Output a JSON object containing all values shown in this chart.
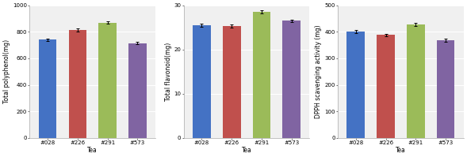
{
  "categories": [
    "#028",
    "#226",
    "#291",
    "#573"
  ],
  "chart1": {
    "ylabel": "Total polyphenol(mg)",
    "xlabel": "Tea",
    "values": [
      740,
      815,
      870,
      715
    ],
    "errors": [
      10,
      12,
      10,
      8
    ],
    "ylim": [
      0,
      1000
    ],
    "yticks": [
      0,
      200,
      400,
      600,
      800,
      1000
    ]
  },
  "chart2": {
    "ylabel": "Total flavonoid(mg)",
    "xlabel": "Tea",
    "values": [
      25.5,
      25.3,
      28.5,
      26.5
    ],
    "errors": [
      0.3,
      0.3,
      0.3,
      0.3
    ],
    "ylim": [
      0,
      30
    ],
    "yticks": [
      0,
      10,
      20,
      30
    ]
  },
  "chart3": {
    "ylabel": "DPPH scavenging activity (mg)",
    "xlabel": "Tea",
    "values": [
      402,
      388,
      428,
      368
    ],
    "errors": [
      6,
      5,
      7,
      5
    ],
    "ylim": [
      0,
      500
    ],
    "yticks": [
      0,
      100,
      200,
      300,
      400,
      500
    ]
  },
  "bar_colors": [
    "#4472c4",
    "#c0504d",
    "#9bbb59",
    "#8064a2"
  ],
  "bar_width": 0.6,
  "figure_bg": "#ffffff",
  "axes_bg": "#f0f0f0",
  "grid_color": "#ffffff",
  "grid_linewidth": 0.8,
  "label_fontsize": 5.5,
  "tick_fontsize": 5.0,
  "error_capsize": 1.5,
  "error_color": "black",
  "error_linewidth": 0.7,
  "spine_color": "#aaaaaa",
  "spine_linewidth": 0.5
}
